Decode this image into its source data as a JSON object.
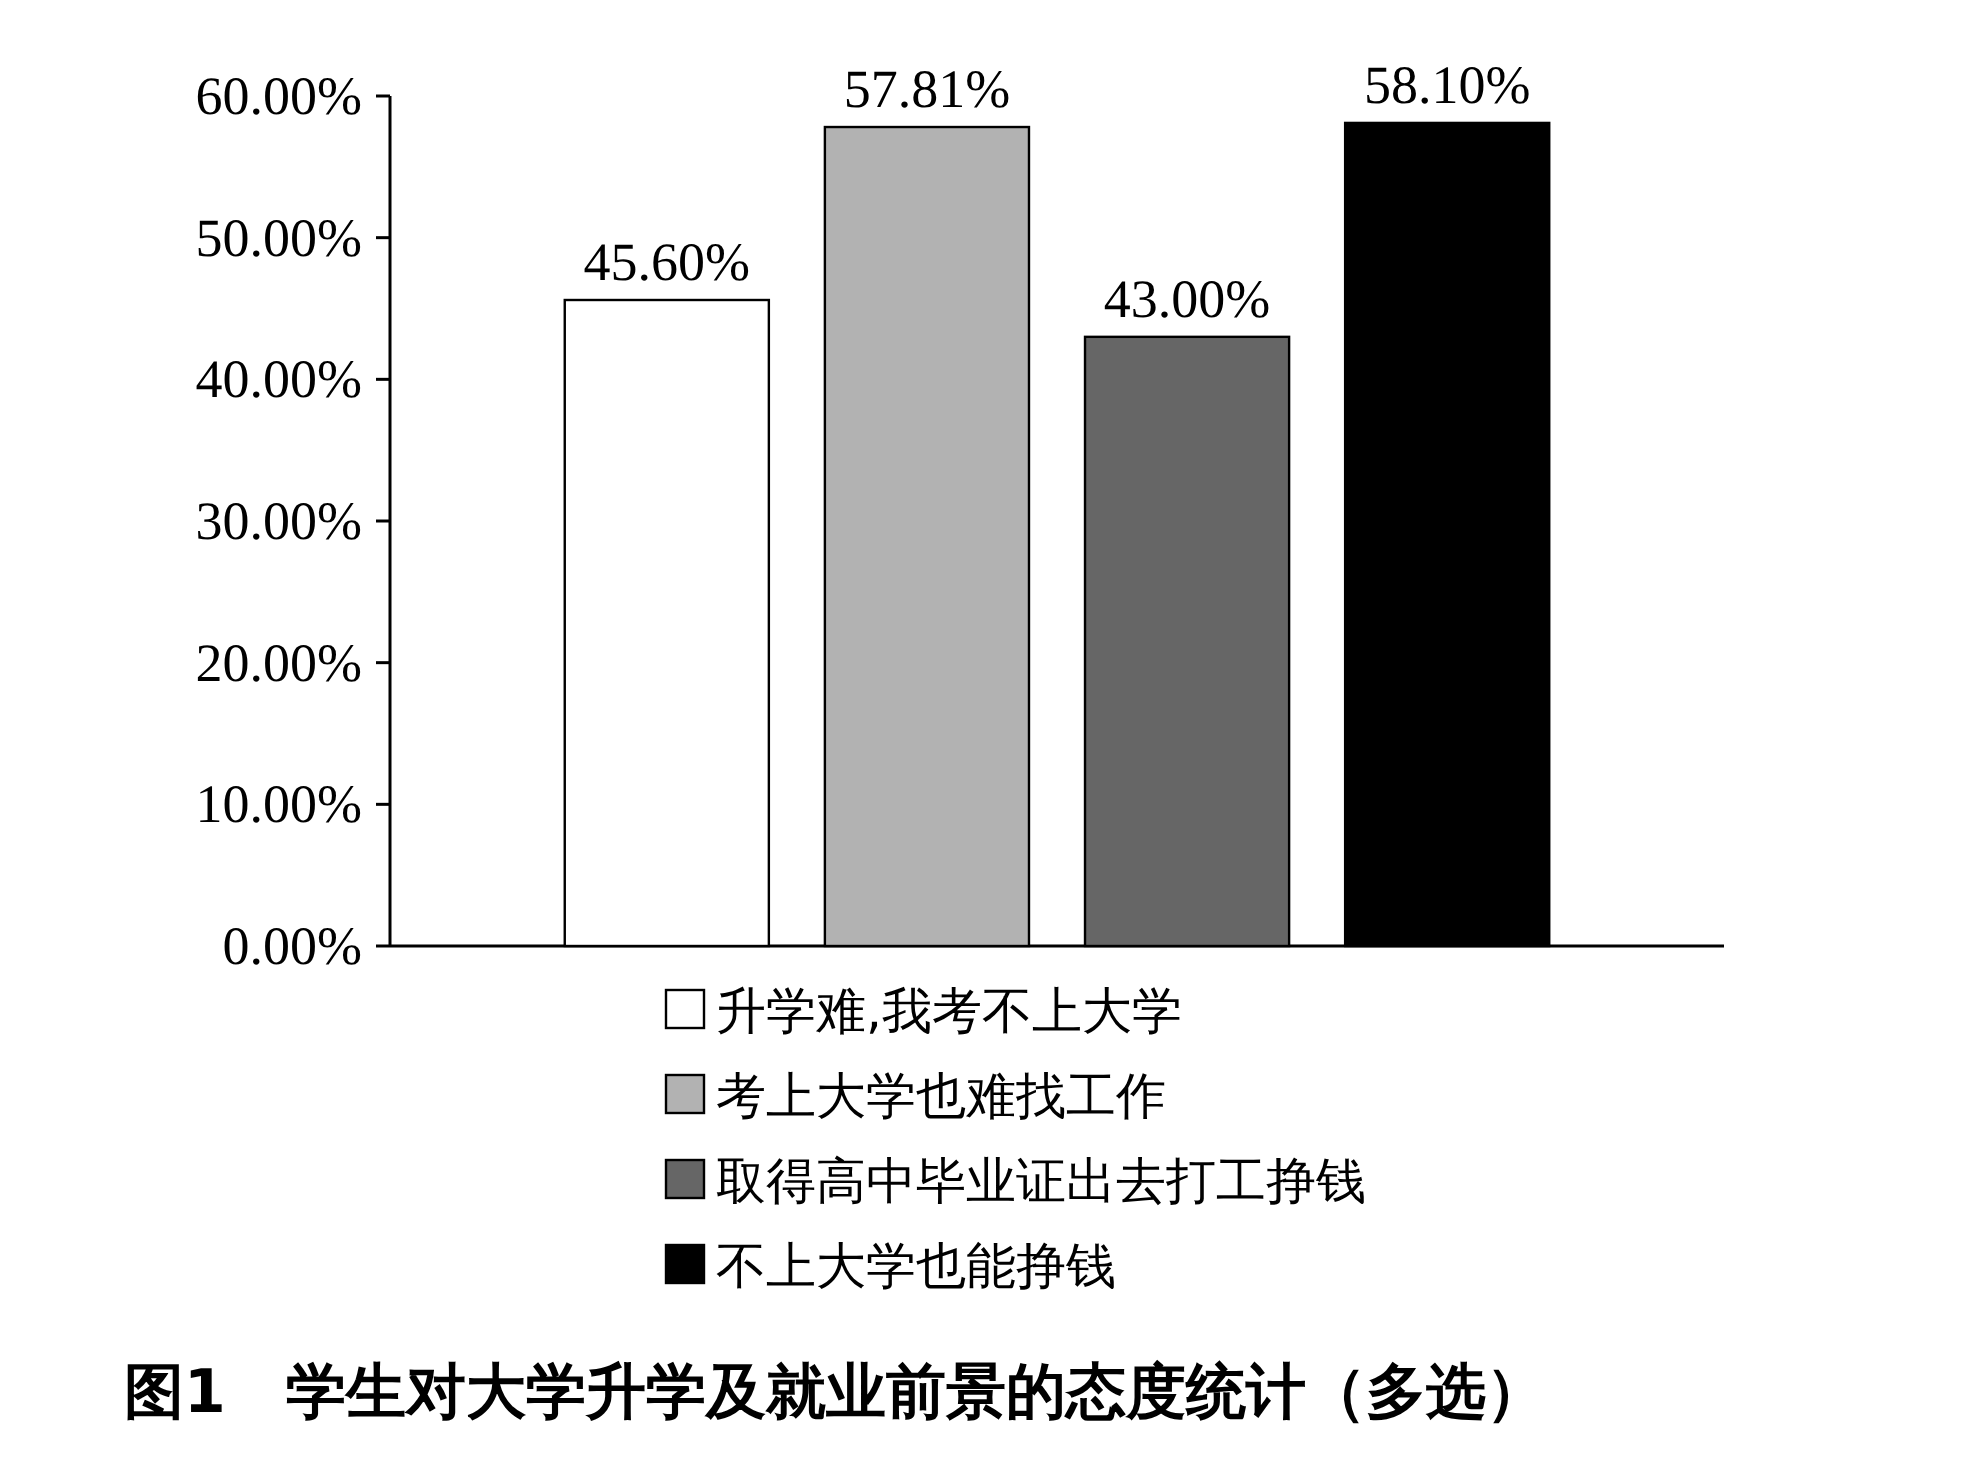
{
  "chart_data": {
    "type": "bar",
    "title": "图1　学生对大学升学及就业前景的态度统计（多选）",
    "categories": [
      null
    ],
    "series": [
      {
        "name": "升学难,我考不上大学",
        "color": "#ffffff",
        "values": [
          45.6
        ],
        "value_labels": [
          "45.60%"
        ]
      },
      {
        "name": "考上大学也难找工作",
        "color": "#b2b2b2",
        "values": [
          57.81
        ],
        "value_labels": [
          "57.81%"
        ]
      },
      {
        "name": "取得高中毕业证出去打工挣钱",
        "color": "#666666",
        "values": [
          43.0
        ],
        "value_labels": [
          "43.00%"
        ]
      },
      {
        "name": "不上大学也能挣钱",
        "color": "#000000",
        "values": [
          58.1
        ],
        "value_labels": [
          "58.10%"
        ]
      }
    ],
    "ylim": [
      0,
      60
    ],
    "yticks": [
      {
        "value": 0,
        "label": "0.00%"
      },
      {
        "value": 10,
        "label": "10.00%"
      },
      {
        "value": 20,
        "label": "20.00%"
      },
      {
        "value": 30,
        "label": "30.00%"
      },
      {
        "value": 40,
        "label": "40.00%"
      },
      {
        "value": 50,
        "label": "50.00%"
      },
      {
        "value": 60,
        "label": "60.00%"
      }
    ],
    "grid": false,
    "legend": "bottom"
  }
}
